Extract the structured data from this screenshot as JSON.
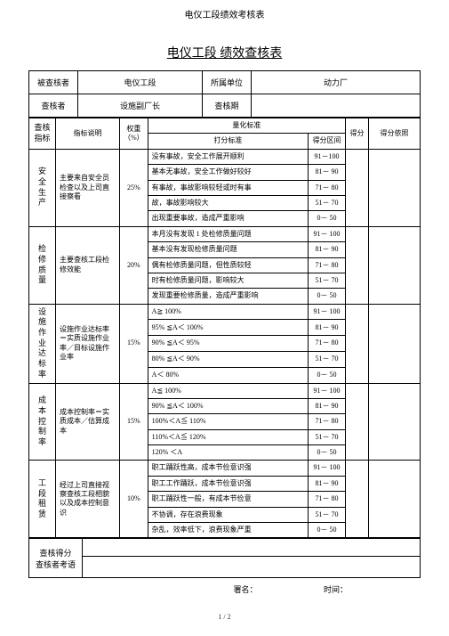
{
  "pageHeader": "电仪工段绩效考核表",
  "docTitle": "电仪工段 绩效查核表",
  "header": {
    "assessee_label": "被查核者",
    "assessee_value": "电仪工段",
    "dept_label": "所属单位",
    "dept_value": "动力厂",
    "assessor_label": "查核者",
    "assessor_value": "设施副厂长",
    "period_label": "查核期"
  },
  "columns": {
    "indicator": "查核指标",
    "status": "指标说明",
    "weight_label": "权重（%）",
    "quant_label": "量化标准",
    "scoring_label": "打分标准",
    "range_label": "得分区间",
    "score_label": "得分",
    "basis_label": "得分依照"
  },
  "groups": [
    {
      "name": "安全生产",
      "desc": "主要来自安全员检查以及上司直接察看",
      "weight": "25%",
      "rows": [
        {
          "c": "没有事故，安全工作展开顺利",
          "r": "91－100"
        },
        {
          "c": "基本无事故，安全工作做好较好",
          "r": "81－ 90"
        },
        {
          "c": "有事故，事故影响较轻或时有事",
          "r": "71－ 80"
        },
        {
          "c": "故，事故影响较大",
          "r": "51－ 70"
        },
        {
          "c": "出现重要事故，造成严重影响",
          "r": "0－ 50"
        }
      ]
    },
    {
      "name": "检修质量",
      "desc": "主要查核工段检修效能",
      "weight": "20%",
      "rows": [
        {
          "c": "本月没有发现 1 处检修质量问题",
          "r": "91－ 100"
        },
        {
          "c": "基本没有发现检修质量问题",
          "r": "81－ 90"
        },
        {
          "c": "偶有检修质量问题，但性质较轻",
          "r": "71－ 80"
        },
        {
          "c": "时有检修质量问题，影响较大",
          "r": "51－ 70"
        },
        {
          "c": "发现重要检修质量，造成严重影响",
          "r": "0－ 50"
        }
      ]
    },
    {
      "name": "设施作业达标率",
      "desc": "设施作业达标率＝实质设施作业率／目标设施作业率",
      "weight": "15%",
      "rows": [
        {
          "c": "A≧ 100%",
          "r": "91－ 100"
        },
        {
          "c": "95% ≦A＜ 100%",
          "r": "81－ 90"
        },
        {
          "c": "90% ≦A＜ 95%",
          "r": "71－ 80"
        },
        {
          "c": "80% ≦A＜ 90%",
          "r": "51－ 70"
        },
        {
          "c": "A＜ 80%",
          "r": "0－ 50"
        }
      ]
    },
    {
      "name": "成本控制率",
      "desc": "成本控制率＝实质成本／估算成本",
      "weight": "15%",
      "rows": [
        {
          "c": "A≦ 100%",
          "r": "91－ 100"
        },
        {
          "c": "90% ≦A＜ 100%",
          "r": "81－ 90"
        },
        {
          "c": "100%＜A≦ 110%",
          "r": "71－ 80"
        },
        {
          "c": "110%＜A≦ 120%",
          "r": "51－ 70"
        },
        {
          "c": "120% ＜A",
          "r": "0－ 50"
        }
      ]
    },
    {
      "name": "工段租赁",
      "desc": "经过上司直接视察查核工段相貌以及成本控制意识",
      "weight": "10%",
      "rows": [
        {
          "c": "职工踊跃性高，成本节俭意识强",
          "r": "91－ 100"
        },
        {
          "c": "职工工作踊跃，成本节俭意识强",
          "r": "81－ 90"
        },
        {
          "c": "职工踊跃性一般，有成本节俭意",
          "r": "71－ 80"
        },
        {
          "c": "不协调，存在浪费现象",
          "r": "51－ 70"
        },
        {
          "c": "杂乱，效率低下，浪费现象严重",
          "r": "0－ 50"
        }
      ]
    }
  ],
  "footer": {
    "score_label": "查核得分",
    "remark_label": "查核者考语",
    "sign_label": "署名：",
    "time_label": "时间："
  },
  "pageNum": "1 / 2"
}
